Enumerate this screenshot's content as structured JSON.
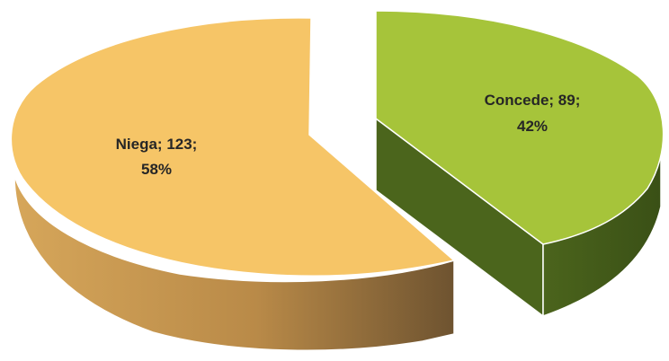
{
  "chart_data": {
    "type": "pie",
    "style": "3d-exploded",
    "title": "",
    "slices": [
      {
        "label": "Niega",
        "value": 123,
        "percent": "58%",
        "text_line1": "Niega; 123;",
        "text_line2": "58%",
        "color": "#f6c567",
        "side_color_dark": "#7a5a2a",
        "side_color_light": "#d9a85a"
      },
      {
        "label": "Concede",
        "value": 89,
        "percent": "42%",
        "text_line1": "Concede; 89;",
        "text_line2": "42%",
        "color": "#a6c43a",
        "side_color_dark": "#3e5417",
        "side_color_light": "#4f6a1f"
      }
    ]
  }
}
